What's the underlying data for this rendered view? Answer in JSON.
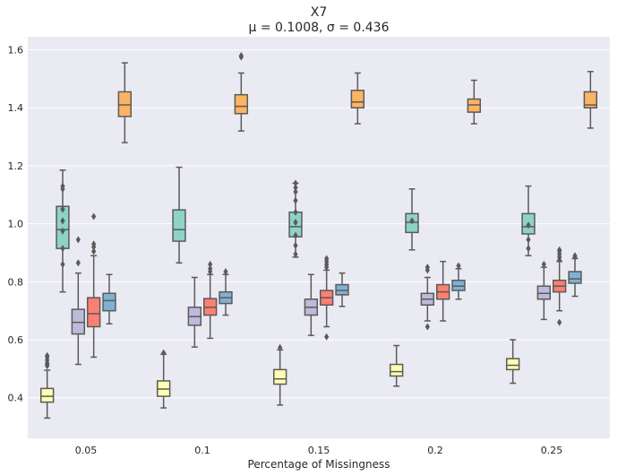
{
  "chart_data": {
    "type": "box",
    "title": "X7",
    "subtitle": "μ = 0.1008, σ = 0.436",
    "xlabel": "Percentage of Missingness",
    "ylabel": "",
    "ylim": [
      0.26,
      1.645
    ],
    "yticks": [
      0.4,
      0.6,
      0.8,
      1.0,
      1.2,
      1.4,
      1.6
    ],
    "ytick_labels": [
      "0.4",
      "0.6",
      "0.8",
      "1.0",
      "1.2",
      "1.4",
      "1.6"
    ],
    "categories": [
      "0.05",
      "0.1",
      "0.15",
      "0.2",
      "0.25"
    ],
    "grid": true,
    "series": [
      {
        "name": "series-1",
        "color": "#FFFFB3",
        "boxes": [
          {
            "whislo": 0.33,
            "q1": 0.385,
            "med": 0.405,
            "q3": 0.432,
            "whishi": 0.495,
            "fliers": [
              0.51,
              0.515,
              0.52,
              0.53,
              0.54,
              0.545
            ]
          },
          {
            "whislo": 0.365,
            "q1": 0.405,
            "med": 0.43,
            "q3": 0.458,
            "whishi": 0.55,
            "fliers": [
              0.555
            ]
          },
          {
            "whislo": 0.375,
            "q1": 0.447,
            "med": 0.465,
            "q3": 0.497,
            "whishi": 0.565,
            "fliers": [
              0.573
            ]
          },
          {
            "whislo": 0.44,
            "q1": 0.475,
            "med": 0.49,
            "q3": 0.515,
            "whishi": 0.58,
            "fliers": []
          },
          {
            "whislo": 0.45,
            "q1": 0.497,
            "med": 0.512,
            "q3": 0.535,
            "whishi": 0.6,
            "fliers": []
          }
        ]
      },
      {
        "name": "series-2",
        "color": "#8DD3C7",
        "boxes": [
          {
            "whislo": 0.765,
            "q1": 0.915,
            "med": 0.98,
            "q3": 1.06,
            "whishi": 1.185,
            "fliers": [
              0.86,
              0.915,
              0.975,
              1.01,
              1.05,
              1.12,
              1.13
            ]
          },
          {
            "whislo": 0.865,
            "q1": 0.94,
            "med": 0.98,
            "q3": 1.048,
            "whishi": 1.195,
            "fliers": []
          },
          {
            "whislo": 0.885,
            "q1": 0.955,
            "med": 0.99,
            "q3": 1.04,
            "whishi": 1.14,
            "fliers": [
              0.895,
              0.925,
              0.96,
              1.005,
              1.04,
              1.08,
              1.11,
              1.125,
              1.14
            ]
          },
          {
            "whislo": 0.91,
            "q1": 0.97,
            "med": 1.005,
            "q3": 1.035,
            "whishi": 1.12,
            "fliers": [
              1.01
            ]
          },
          {
            "whislo": 0.89,
            "q1": 0.965,
            "med": 0.99,
            "q3": 1.035,
            "whishi": 1.13,
            "fliers": [
              0.915,
              0.945,
              0.995
            ]
          }
        ]
      },
      {
        "name": "series-3",
        "color": "#BEBADA",
        "boxes": [
          {
            "whislo": 0.515,
            "q1": 0.62,
            "med": 0.66,
            "q3": 0.705,
            "whishi": 0.83,
            "fliers": [
              0.865,
              0.945
            ]
          },
          {
            "whislo": 0.575,
            "q1": 0.65,
            "med": 0.68,
            "q3": 0.712,
            "whishi": 0.815,
            "fliers": []
          },
          {
            "whislo": 0.615,
            "q1": 0.685,
            "med": 0.712,
            "q3": 0.74,
            "whishi": 0.825,
            "fliers": []
          },
          {
            "whislo": 0.665,
            "q1": 0.72,
            "med": 0.74,
            "q3": 0.76,
            "whishi": 0.815,
            "fliers": [
              0.645,
              0.84,
              0.85
            ]
          },
          {
            "whislo": 0.67,
            "q1": 0.74,
            "med": 0.76,
            "q3": 0.785,
            "whishi": 0.85,
            "fliers": [
              0.86
            ]
          }
        ]
      },
      {
        "name": "series-4",
        "color": "#FB8072",
        "boxes": [
          {
            "whislo": 0.54,
            "q1": 0.645,
            "med": 0.69,
            "q3": 0.745,
            "whishi": 0.89,
            "fliers": [
              0.905,
              0.92,
              0.93,
              1.025
            ]
          },
          {
            "whislo": 0.605,
            "q1": 0.685,
            "med": 0.712,
            "q3": 0.742,
            "whishi": 0.825,
            "fliers": [
              0.835,
              0.845,
              0.86
            ]
          },
          {
            "whislo": 0.645,
            "q1": 0.72,
            "med": 0.745,
            "q3": 0.77,
            "whishi": 0.84,
            "fliers": [
              0.61,
              0.85,
              0.86,
              0.87,
              0.88
            ]
          },
          {
            "whislo": 0.665,
            "q1": 0.74,
            "med": 0.765,
            "q3": 0.79,
            "whishi": 0.87,
            "fliers": []
          },
          {
            "whislo": 0.7,
            "q1": 0.765,
            "med": 0.785,
            "q3": 0.805,
            "whishi": 0.87,
            "fliers": [
              0.66,
              0.875,
              0.885,
              0.895,
              0.905,
              0.91
            ]
          }
        ]
      },
      {
        "name": "series-5",
        "color": "#80B1D3",
        "boxes": [
          {
            "whislo": 0.655,
            "q1": 0.7,
            "med": 0.735,
            "q3": 0.76,
            "whishi": 0.825,
            "fliers": []
          },
          {
            "whislo": 0.685,
            "q1": 0.725,
            "med": 0.745,
            "q3": 0.765,
            "whishi": 0.825,
            "fliers": [
              0.835
            ]
          },
          {
            "whislo": 0.715,
            "q1": 0.755,
            "med": 0.77,
            "q3": 0.79,
            "whishi": 0.83,
            "fliers": []
          },
          {
            "whislo": 0.74,
            "q1": 0.77,
            "med": 0.785,
            "q3": 0.805,
            "whishi": 0.845,
            "fliers": [
              0.855
            ]
          },
          {
            "whislo": 0.75,
            "q1": 0.795,
            "med": 0.81,
            "q3": 0.835,
            "whishi": 0.88,
            "fliers": [
              0.885,
              0.89
            ]
          }
        ]
      },
      {
        "name": "series-6",
        "color": "#FDB462",
        "boxes": [
          {
            "whislo": 1.28,
            "q1": 1.37,
            "med": 1.41,
            "q3": 1.455,
            "whishi": 1.555,
            "fliers": []
          },
          {
            "whislo": 1.32,
            "q1": 1.38,
            "med": 1.405,
            "q3": 1.445,
            "whishi": 1.52,
            "fliers": [
              1.575,
              1.58
            ]
          },
          {
            "whislo": 1.345,
            "q1": 1.4,
            "med": 1.42,
            "q3": 1.46,
            "whishi": 1.52,
            "fliers": []
          },
          {
            "whislo": 1.345,
            "q1": 1.385,
            "med": 1.41,
            "q3": 1.43,
            "whishi": 1.495,
            "fliers": []
          },
          {
            "whislo": 1.33,
            "q1": 1.4,
            "med": 1.41,
            "q3": 1.455,
            "whishi": 1.525,
            "fliers": []
          }
        ]
      }
    ]
  }
}
